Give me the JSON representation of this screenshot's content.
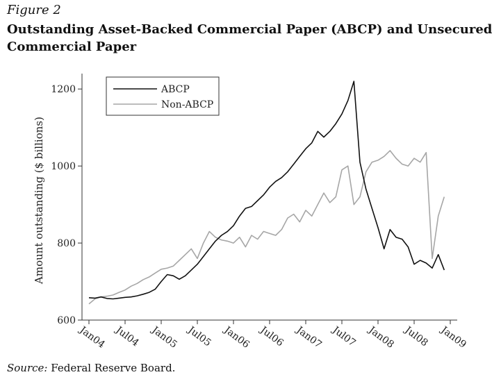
{
  "figure": {
    "label": "Figure 2",
    "title": "Outstanding Asset-Backed Commercial Paper (ABCP) and Unsecured Commercial Paper",
    "source_label": "Source:",
    "source_text": " Federal Reserve Board."
  },
  "chart_data": {
    "type": "line",
    "title": "Outstanding Asset-Backed Commercial Paper (ABCP) and Unsecured Commercial Paper",
    "xlabel": "",
    "ylabel": "Amount outstanding ($ billions)",
    "ylim": [
      600,
      1240
    ],
    "yticks": [
      600,
      800,
      1000,
      1200
    ],
    "xticks": [
      "Jan04",
      "Jul04",
      "Jan05",
      "Jul05",
      "Jan06",
      "Jul06",
      "Jan07",
      "Jul07",
      "Jan08",
      "Jul08",
      "Jan09"
    ],
    "grid": false,
    "legend_position": "top-left",
    "x_range": [
      "2004-01",
      "2009-01"
    ],
    "series": [
      {
        "name": "ABCP",
        "color": "#111111",
        "x": [
          "2004-01",
          "2004-02",
          "2004-03",
          "2004-04",
          "2004-05",
          "2004-06",
          "2004-07",
          "2004-08",
          "2004-09",
          "2004-10",
          "2004-11",
          "2004-12",
          "2005-01",
          "2005-02",
          "2005-03",
          "2005-04",
          "2005-05",
          "2005-06",
          "2005-07",
          "2005-08",
          "2005-09",
          "2005-10",
          "2005-11",
          "2005-12",
          "2006-01",
          "2006-02",
          "2006-03",
          "2006-04",
          "2006-05",
          "2006-06",
          "2006-07",
          "2006-08",
          "2006-09",
          "2006-10",
          "2006-11",
          "2006-12",
          "2007-01",
          "2007-02",
          "2007-03",
          "2007-04",
          "2007-05",
          "2007-06",
          "2007-07",
          "2007-08",
          "2007-09",
          "2007-10",
          "2007-11",
          "2007-12",
          "2008-01",
          "2008-02",
          "2008-03",
          "2008-04",
          "2008-05",
          "2008-06",
          "2008-07",
          "2008-08",
          "2008-09",
          "2008-10",
          "2008-11",
          "2008-12"
        ],
        "values": [
          658,
          657,
          660,
          656,
          655,
          657,
          659,
          660,
          663,
          667,
          672,
          680,
          700,
          718,
          715,
          706,
          715,
          730,
          745,
          765,
          785,
          805,
          820,
          830,
          845,
          870,
          890,
          895,
          910,
          925,
          945,
          960,
          970,
          985,
          1005,
          1025,
          1045,
          1060,
          1090,
          1075,
          1090,
          1110,
          1135,
          1170,
          1220,
          1010,
          940,
          890,
          840,
          785,
          835,
          815,
          810,
          790,
          745,
          755,
          748,
          735,
          770,
          730
        ]
      },
      {
        "name": "Non-ABCP",
        "color": "#a6a6a6",
        "x": [
          "2004-01",
          "2004-02",
          "2004-03",
          "2004-04",
          "2004-05",
          "2004-06",
          "2004-07",
          "2004-08",
          "2004-09",
          "2004-10",
          "2004-11",
          "2004-12",
          "2005-01",
          "2005-02",
          "2005-03",
          "2005-04",
          "2005-05",
          "2005-06",
          "2005-07",
          "2005-08",
          "2005-09",
          "2005-10",
          "2005-11",
          "2005-12",
          "2006-01",
          "2006-02",
          "2006-03",
          "2006-04",
          "2006-05",
          "2006-06",
          "2006-07",
          "2006-08",
          "2006-09",
          "2006-10",
          "2006-11",
          "2006-12",
          "2007-01",
          "2007-02",
          "2007-03",
          "2007-04",
          "2007-05",
          "2007-06",
          "2007-07",
          "2007-08",
          "2007-09",
          "2007-10",
          "2007-11",
          "2007-12",
          "2008-01",
          "2008-02",
          "2008-03",
          "2008-04",
          "2008-05",
          "2008-06",
          "2008-07",
          "2008-08",
          "2008-09",
          "2008-10",
          "2008-11",
          "2008-12"
        ],
        "values": [
          642,
          655,
          660,
          662,
          665,
          672,
          678,
          688,
          695,
          705,
          712,
          722,
          732,
          735,
          740,
          755,
          770,
          785,
          760,
          800,
          830,
          815,
          808,
          805,
          800,
          815,
          790,
          820,
          810,
          830,
          825,
          820,
          835,
          865,
          875,
          855,
          885,
          870,
          900,
          930,
          905,
          920,
          990,
          1000,
          900,
          920,
          985,
          1010,
          1015,
          1025,
          1040,
          1020,
          1005,
          1000,
          1020,
          1010,
          1035,
          760,
          870,
          920
        ]
      }
    ]
  }
}
